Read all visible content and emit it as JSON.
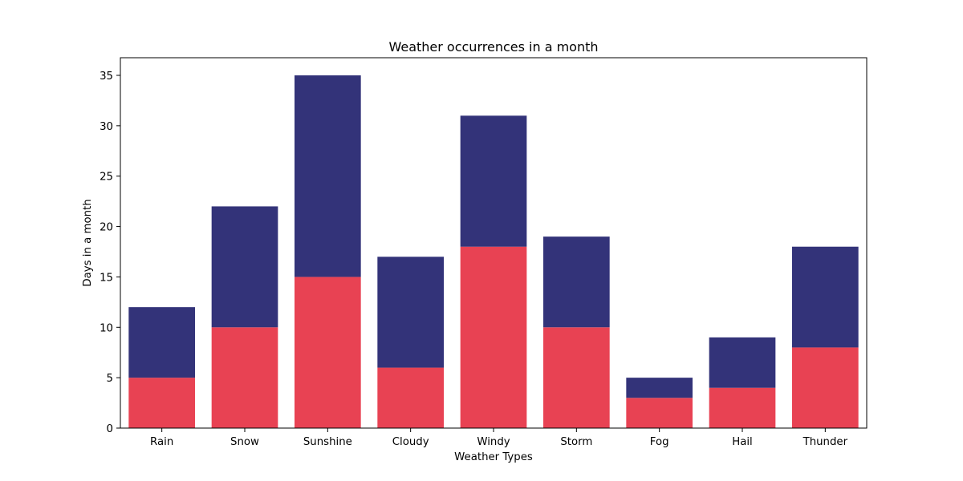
{
  "chart_data": {
    "type": "bar",
    "stacked": true,
    "title": "Weather occurrences in a month",
    "xlabel": "Weather Types",
    "ylabel": "Days in a month",
    "categories": [
      "Rain",
      "Snow",
      "Sunshine",
      "Cloudy",
      "Windy",
      "Storm",
      "Fog",
      "Hail",
      "Thunder"
    ],
    "ylim": [
      0,
      36.75
    ],
    "yticks": [
      0,
      5,
      10,
      15,
      20,
      25,
      30,
      35
    ],
    "grid": false,
    "series": [
      {
        "color": "#e84253",
        "values": [
          5,
          10,
          15,
          6,
          18,
          10,
          3,
          4,
          8
        ]
      },
      {
        "color": "#333379",
        "values": [
          7,
          12,
          20,
          11,
          13,
          9,
          2,
          5,
          10
        ]
      }
    ]
  }
}
